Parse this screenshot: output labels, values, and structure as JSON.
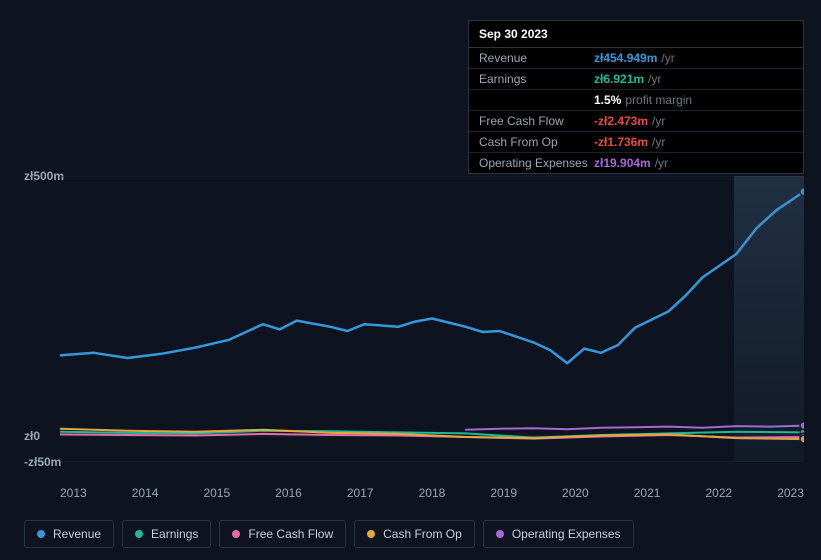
{
  "tooltip": {
    "date": "Sep 30 2023",
    "rows": [
      {
        "label": "Revenue",
        "value": "zł454.949m",
        "suffix": "/yr",
        "color": "#3498db"
      },
      {
        "label": "Earnings",
        "value": "zł6.921m",
        "suffix": "/yr",
        "color": "#1abc9c"
      },
      {
        "label": "",
        "value": "1.5%",
        "suffix": "profit margin",
        "color": "#ffffff"
      },
      {
        "label": "Free Cash Flow",
        "value": "-zł2.473m",
        "suffix": "/yr",
        "color": "#e74c3c"
      },
      {
        "label": "Cash From Op",
        "value": "-zł1.736m",
        "suffix": "/yr",
        "color": "#e74c3c"
      },
      {
        "label": "Operating Expenses",
        "value": "zł19.904m",
        "suffix": "/yr",
        "color": "#a569d6"
      }
    ]
  },
  "chart": {
    "type": "line",
    "background_color": "#0d1420",
    "grid_color": "#1a2432",
    "text_color": "#9aa7b5",
    "ylim": [
      -50,
      500
    ],
    "y_ticks": [
      {
        "v": 500,
        "label": "zł500m"
      },
      {
        "v": 0,
        "label": "zł0"
      },
      {
        "v": -50,
        "label": "-zł50m"
      }
    ],
    "x_labels": [
      "2013",
      "2014",
      "2015",
      "2016",
      "2017",
      "2018",
      "2019",
      "2020",
      "2021",
      "2022",
      "2023"
    ],
    "x_domain": [
      0,
      11
    ],
    "series": [
      {
        "name": "Revenue",
        "color": "#3498db",
        "width": 2.5,
        "points": [
          [
            0,
            155
          ],
          [
            0.5,
            160
          ],
          [
            1,
            150
          ],
          [
            1.5,
            158
          ],
          [
            2,
            170
          ],
          [
            2.5,
            185
          ],
          [
            3,
            215
          ],
          [
            3.25,
            205
          ],
          [
            3.5,
            222
          ],
          [
            4,
            210
          ],
          [
            4.25,
            202
          ],
          [
            4.5,
            215
          ],
          [
            5,
            210
          ],
          [
            5.25,
            220
          ],
          [
            5.5,
            226
          ],
          [
            5.75,
            218
          ],
          [
            6,
            210
          ],
          [
            6.25,
            200
          ],
          [
            6.5,
            202
          ],
          [
            7,
            180
          ],
          [
            7.25,
            165
          ],
          [
            7.5,
            140
          ],
          [
            7.75,
            168
          ],
          [
            8,
            160
          ],
          [
            8.25,
            175
          ],
          [
            8.5,
            208
          ],
          [
            9,
            240
          ],
          [
            9.25,
            270
          ],
          [
            9.5,
            305
          ],
          [
            10,
            350
          ],
          [
            10.3,
            400
          ],
          [
            10.6,
            435
          ],
          [
            11,
            470
          ]
        ]
      },
      {
        "name": "Earnings",
        "color": "#1abc9c",
        "width": 2,
        "points": [
          [
            0,
            8
          ],
          [
            1,
            6
          ],
          [
            2,
            5
          ],
          [
            3,
            10
          ],
          [
            4,
            9
          ],
          [
            5,
            7
          ],
          [
            6,
            5
          ],
          [
            7,
            -3
          ],
          [
            8,
            2
          ],
          [
            9,
            5
          ],
          [
            10,
            8
          ],
          [
            11,
            7
          ]
        ]
      },
      {
        "name": "Free Cash Flow",
        "color": "#e86aa6",
        "width": 2,
        "points": [
          [
            0,
            3
          ],
          [
            1,
            2
          ],
          [
            2,
            1
          ],
          [
            3,
            4
          ],
          [
            4,
            2
          ],
          [
            5,
            1
          ],
          [
            6,
            -2
          ],
          [
            7,
            -5
          ],
          [
            8,
            -1
          ],
          [
            9,
            2
          ],
          [
            10,
            -3
          ],
          [
            11,
            -2
          ]
        ]
      },
      {
        "name": "Cash From Op",
        "color": "#e6a741",
        "width": 2,
        "points": [
          [
            0,
            14
          ],
          [
            1,
            10
          ],
          [
            2,
            8
          ],
          [
            3,
            12
          ],
          [
            4,
            6
          ],
          [
            5,
            4
          ],
          [
            6,
            -2
          ],
          [
            7,
            -4
          ],
          [
            8,
            1
          ],
          [
            9,
            3
          ],
          [
            10,
            -4
          ],
          [
            11,
            -6
          ]
        ]
      },
      {
        "name": "Operating Expenses",
        "color": "#a569d6",
        "width": 2,
        "points": [
          [
            6,
            12
          ],
          [
            6.5,
            14
          ],
          [
            7,
            15
          ],
          [
            7.5,
            13
          ],
          [
            8,
            16
          ],
          [
            8.5,
            17
          ],
          [
            9,
            18
          ],
          [
            9.5,
            16
          ],
          [
            10,
            19
          ],
          [
            10.5,
            18
          ],
          [
            11,
            20
          ]
        ]
      }
    ],
    "legend": [
      {
        "label": "Revenue",
        "color": "#3498db"
      },
      {
        "label": "Earnings",
        "color": "#1abc9c"
      },
      {
        "label": "Free Cash Flow",
        "color": "#e86aa6"
      },
      {
        "label": "Cash From Op",
        "color": "#e6a741"
      },
      {
        "label": "Operating Expenses",
        "color": "#a569d6"
      }
    ]
  }
}
